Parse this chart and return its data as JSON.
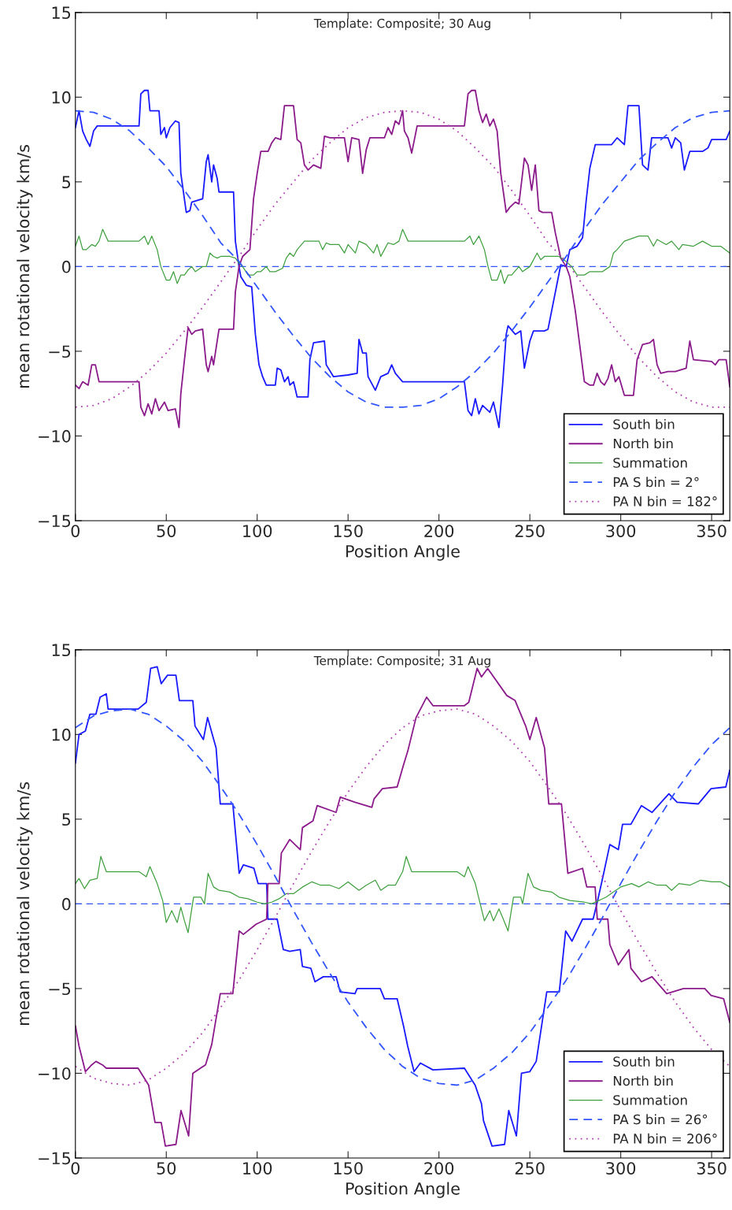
{
  "chart_data": [
    {
      "type": "line",
      "title": "Template: Composite; 30 Aug",
      "xlabel": "Position Angle",
      "ylabel": "mean rotational velocity km/s",
      "xlim": [
        0,
        360
      ],
      "ylim": [
        -15,
        15
      ],
      "xticks": [
        0,
        50,
        100,
        150,
        200,
        250,
        300,
        350
      ],
      "yticks": [
        -15,
        -10,
        -5,
        0,
        5,
        10,
        15
      ],
      "grid": false,
      "legend": "bottom right",
      "marker": "none",
      "ref_lines": [
        {
          "axis": "y",
          "value": 0,
          "color": "#3355ff",
          "line_style": "dashed"
        }
      ],
      "series": [
        {
          "name": "South bin",
          "color": "#1a1aff",
          "line_style": "solid",
          "x": [
            0,
            2,
            4,
            6,
            8,
            10,
            12,
            35,
            36,
            38,
            40,
            41,
            46,
            47,
            49,
            50,
            52,
            55,
            57,
            58,
            61,
            63,
            64,
            70,
            72,
            73,
            75,
            76,
            78,
            79,
            87,
            88,
            90,
            91,
            94,
            97,
            99,
            101,
            103,
            105,
            110,
            111,
            113,
            115,
            117,
            118,
            120,
            122,
            128,
            129,
            131,
            137,
            138,
            142,
            150,
            155,
            156,
            158,
            160,
            161,
            165,
            168,
            172,
            174,
            176,
            180,
            214,
            216,
            218,
            220,
            222,
            224,
            228,
            230,
            233,
            235,
            237,
            238,
            242,
            245,
            247,
            250,
            252,
            258,
            260,
            267,
            270,
            272,
            276,
            279,
            281,
            283,
            286,
            295,
            298,
            302,
            304,
            310,
            312,
            315,
            317,
            326,
            328,
            330,
            333,
            335,
            338,
            345,
            348,
            350,
            358,
            360
          ],
          "values": [
            8.2,
            9.2,
            8,
            7.5,
            7.1,
            8,
            8.3,
            8.3,
            10.2,
            10.4,
            10.4,
            9.2,
            9.2,
            7.8,
            8.2,
            7.6,
            8.2,
            8.6,
            8.5,
            5.5,
            3.2,
            3.3,
            3.8,
            4,
            6.2,
            6.6,
            5,
            6,
            5.2,
            4.4,
            4.4,
            1.5,
            0,
            -0.6,
            -1.1,
            -1.2,
            -4,
            -5.8,
            -6.5,
            -7,
            -7,
            -6,
            -6.1,
            -6.8,
            -6.5,
            -7,
            -6.8,
            -7.7,
            -7.7,
            -5.5,
            -4.5,
            -4.4,
            -5.8,
            -6.5,
            -6.4,
            -6.3,
            -4.3,
            -5.1,
            -5.1,
            -6.5,
            -7.3,
            -6.5,
            -6.3,
            -5.8,
            -6.3,
            -6.8,
            -6.8,
            -8.5,
            -8.8,
            -7.8,
            -8.7,
            -8.2,
            -8.6,
            -8,
            -9.5,
            -7,
            -4,
            -3.5,
            -4,
            -3.8,
            -6,
            -4.4,
            -3.8,
            -3.8,
            -3.7,
            0.1,
            0,
            1,
            1.2,
            1.7,
            3.9,
            5.8,
            7.2,
            7.2,
            7.6,
            7.2,
            9.5,
            9.5,
            6,
            5.7,
            7.6,
            7.6,
            7,
            7.6,
            7.3,
            5.7,
            6.8,
            6.8,
            7,
            7.5,
            7.5,
            8
          ]
        },
        {
          "name": "North bin",
          "color": "#8b1a8b",
          "line_style": "solid",
          "x": [
            0,
            2,
            4,
            7,
            9,
            11,
            13,
            35,
            36,
            38,
            40,
            42,
            44,
            46,
            49,
            51,
            55,
            57,
            58,
            60,
            62,
            64,
            66,
            70,
            72,
            73,
            75,
            76,
            79,
            87,
            88,
            90,
            92,
            96,
            98,
            100,
            102,
            106,
            108,
            110,
            113,
            115,
            120,
            122,
            124,
            126,
            128,
            131,
            135,
            137,
            140,
            148,
            150,
            152,
            156,
            158,
            160,
            162,
            170,
            172,
            174,
            176,
            178,
            180,
            181,
            183,
            185,
            188,
            195,
            214,
            216,
            218,
            220,
            222,
            224,
            226,
            228,
            230,
            232,
            234,
            237,
            239,
            242,
            244,
            247,
            249,
            251,
            253,
            255,
            257,
            262,
            264,
            267,
            270,
            272,
            275,
            278,
            280,
            283,
            285,
            287,
            289,
            291,
            293,
            295,
            297,
            299,
            302,
            307,
            309,
            312,
            316,
            318,
            320,
            322,
            326,
            330,
            336,
            338,
            340,
            350,
            352,
            354,
            358,
            360
          ],
          "values": [
            -7,
            -7.2,
            -6.8,
            -7,
            -5.8,
            -5.8,
            -6.8,
            -6.8,
            -8.3,
            -8.8,
            -8.1,
            -8.7,
            -7.8,
            -8.5,
            -8,
            -8.5,
            -8.4,
            -9.5,
            -7.5,
            -5.5,
            -3.6,
            -4,
            -3.8,
            -3.7,
            -5.8,
            -6.2,
            -5.3,
            -5.8,
            -3.7,
            -3.7,
            -1.5,
            0,
            0.6,
            1,
            4,
            5.5,
            6.8,
            6.8,
            7.3,
            7.6,
            7.5,
            9.5,
            9.5,
            7.5,
            7.3,
            6,
            5.7,
            6,
            5.8,
            7.7,
            7.6,
            7.6,
            6.2,
            7.6,
            7.5,
            5.5,
            6.9,
            7.6,
            7.6,
            8.2,
            7.8,
            8.6,
            8.4,
            9.2,
            8,
            7.6,
            6.7,
            8.3,
            8.3,
            8.3,
            10.2,
            10.4,
            10.4,
            9.2,
            8.5,
            9,
            8.3,
            8.7,
            8,
            5.5,
            3.2,
            3.5,
            3.8,
            3.7,
            6.4,
            6,
            4.5,
            6,
            3.3,
            3.2,
            3.2,
            2,
            0.5,
            0,
            -0.6,
            -2.6,
            -5.1,
            -6.8,
            -7,
            -7,
            -6.3,
            -6.8,
            -7,
            -6.6,
            -5.8,
            -6.8,
            -6.5,
            -7.6,
            -7.6,
            -5.5,
            -4.6,
            -4.5,
            -4.3,
            -5.8,
            -6.3,
            -6.2,
            -6.2,
            -6,
            -4.4,
            -5.5,
            -5.6,
            -5.8,
            -5.5,
            -5.5,
            -7.1
          ]
        },
        {
          "name": "Summation",
          "color": "#40a040",
          "line_style": "solid",
          "x": [
            0,
            2,
            4,
            6,
            9,
            11,
            13,
            15,
            18,
            35,
            38,
            40,
            42,
            45,
            47,
            50,
            52,
            54,
            56,
            58,
            60,
            62,
            64,
            66,
            70,
            72,
            74,
            76,
            78,
            80,
            85,
            88,
            90,
            92,
            95,
            98,
            100,
            102,
            105,
            107,
            110,
            114,
            116,
            118,
            120,
            122,
            126,
            130,
            134,
            136,
            138,
            140,
            145,
            148,
            150,
            154,
            156,
            160,
            164,
            166,
            168,
            170,
            172,
            175,
            178,
            180,
            183,
            195,
            205,
            214,
            217,
            219,
            222,
            225,
            227,
            229,
            232,
            234,
            236,
            238,
            240,
            244,
            246,
            250,
            254,
            256,
            258,
            262,
            266,
            270,
            273,
            276,
            280,
            283,
            286,
            290,
            294,
            296,
            298,
            302,
            310,
            315,
            318,
            320,
            325,
            328,
            332,
            334,
            340,
            345,
            350,
            355,
            360
          ],
          "values": [
            1.2,
            1.8,
            1,
            1,
            1.3,
            1.2,
            1.5,
            2.2,
            1.5,
            1.5,
            1.8,
            1.3,
            1.8,
            1.0,
            0,
            -0.8,
            -0.8,
            -0.3,
            -1,
            -0.5,
            -0.5,
            -0.2,
            0,
            -0.3,
            0,
            0,
            0.8,
            0.6,
            0.5,
            0.6,
            0.6,
            0.5,
            0.2,
            0,
            -0.5,
            -0.5,
            -0.3,
            -0.3,
            0,
            -0.3,
            -0.3,
            -0.1,
            0.5,
            0.8,
            0.6,
            1,
            1.5,
            1.5,
            1.5,
            1,
            1.4,
            1.3,
            1.3,
            0.8,
            1.3,
            0.8,
            1.5,
            1.3,
            0.8,
            1.3,
            0.6,
            1,
            1.4,
            1.3,
            1.5,
            2.2,
            1.5,
            1.5,
            1.5,
            1.5,
            1.8,
            1.3,
            1.8,
            1.0,
            0,
            -0.8,
            -0.8,
            -0.2,
            -1,
            -0.5,
            -0.5,
            0,
            -0.3,
            0,
            0.8,
            0.4,
            0.6,
            0.6,
            0.6,
            0.3,
            0,
            -0.5,
            -0.5,
            -0.3,
            -0.3,
            -0.3,
            0,
            0.8,
            1.0,
            1.5,
            1.8,
            1.8,
            1.2,
            1.6,
            1.3,
            1.5,
            1,
            1.3,
            1.2,
            1.5,
            1.2,
            1.2,
            0.8
          ]
        },
        {
          "name": "PA S bin = 2°",
          "color": "#3355ff",
          "line_style": "dashed",
          "x": [
            0,
            10,
            20,
            30,
            40,
            50,
            60,
            70,
            80,
            90,
            100,
            110,
            120,
            130,
            140,
            150,
            160,
            170,
            180,
            190,
            200,
            210,
            220,
            230,
            240,
            250,
            260,
            270,
            280,
            290,
            300,
            310,
            320,
            330,
            340,
            350,
            360
          ],
          "values": [
            9.2,
            9.1,
            8.7,
            8.0,
            7.0,
            5.9,
            4.5,
            3.0,
            1.4,
            0.3,
            -1.2,
            -2.7,
            -4.1,
            -5.4,
            -6.5,
            -7.4,
            -8.0,
            -8.3,
            -8.3,
            -8.2,
            -7.8,
            -7.1,
            -6.2,
            -5.1,
            -3.8,
            -2.4,
            -0.9,
            0.6,
            2.2,
            3.7,
            5.0,
            6.3,
            7.3,
            8.2,
            8.8,
            9.1,
            9.2
          ]
        },
        {
          "name": "PA N bin = 182°",
          "color": "#b040b0",
          "line_style": "dotted",
          "x": [
            0,
            10,
            20,
            30,
            40,
            50,
            60,
            70,
            80,
            90,
            100,
            110,
            120,
            130,
            140,
            150,
            160,
            170,
            180,
            190,
            200,
            210,
            220,
            230,
            240,
            250,
            260,
            270,
            280,
            290,
            300,
            310,
            320,
            330,
            340,
            350,
            360
          ],
          "values": [
            -8.3,
            -8.2,
            -7.8,
            -7.1,
            -6.2,
            -5.1,
            -3.8,
            -2.4,
            -0.9,
            0.6,
            2.2,
            3.7,
            5.0,
            6.3,
            7.3,
            8.2,
            8.8,
            9.1,
            9.2,
            9.1,
            8.7,
            8.0,
            7.0,
            5.9,
            4.5,
            3.0,
            1.4,
            0.3,
            -1.2,
            -2.7,
            -4.1,
            -5.4,
            -6.5,
            -7.4,
            -8.0,
            -8.3,
            -8.3
          ]
        }
      ]
    },
    {
      "type": "line",
      "title": "Template: Composite; 31 Aug",
      "xlabel": "Position Angle",
      "ylabel": "mean rotational velocity km/s",
      "xlim": [
        0,
        360
      ],
      "ylim": [
        -15,
        15
      ],
      "xticks": [
        0,
        50,
        100,
        150,
        200,
        250,
        300,
        350
      ],
      "yticks": [
        -15,
        -10,
        -5,
        0,
        5,
        10,
        15
      ],
      "grid": false,
      "legend": "bottom right",
      "marker": "none",
      "ref_lines": [
        {
          "axis": "y",
          "value": 0,
          "color": "#3355ff",
          "line_style": "dashed"
        }
      ],
      "series": [
        {
          "name": "South bin",
          "color": "#1a1aff",
          "line_style": "solid",
          "x": [
            0,
            2,
            5.5,
            8,
            11.3,
            13.6,
            17,
            18,
            34.5,
            39,
            41.4,
            45,
            47.2,
            50.7,
            55.3,
            57.2,
            64.6,
            65.8,
            70.4,
            72.7,
            77.4,
            79.7,
            86.6,
            90.1,
            92.4,
            98.2,
            100.5,
            105.2,
            105.9,
            111,
            114.4,
            117.9,
            123.7,
            124.9,
            129.5,
            131.8,
            136.4,
            143.4,
            145.7,
            153.8,
            155,
            167.7,
            170,
            177,
            180.5,
            182.8,
            186.3,
            189.8,
            196.7,
            214,
            219.9,
            223.4,
            224.5,
            229.2,
            236.1,
            238.4,
            242.6,
            245.4,
            250,
            253.5,
            259.3,
            266.2,
            269.7,
            273.2,
            279,
            284.8,
            287.1,
            290.6,
            294,
            298.7,
            301,
            305.6,
            311.4,
            317.2,
            326.5,
            331,
            342.7,
            345,
            349.7,
            357.8,
            360
          ],
          "values": [
            8.3,
            10.0,
            10.2,
            11.2,
            11.2,
            12.2,
            12.4,
            11.5,
            11.5,
            11.9,
            13.9,
            14.0,
            13.0,
            13.5,
            13.5,
            12.0,
            12.0,
            10.5,
            9.7,
            11.0,
            9.2,
            5.9,
            5.9,
            1.8,
            2.3,
            2.1,
            1.2,
            1.2,
            -0.9,
            -0.9,
            -2.7,
            -2.8,
            -2.7,
            -3.7,
            -3.8,
            -4.6,
            -4.3,
            -4.3,
            -5.2,
            -5.3,
            -5.0,
            -5.0,
            -5.6,
            -5.6,
            -7.2,
            -8.4,
            -9.9,
            -9.4,
            -9.8,
            -9.7,
            -10.7,
            -11.8,
            -12.8,
            -14.3,
            -14.2,
            -12.2,
            -13.7,
            -10.0,
            -9.9,
            -9.3,
            -5.2,
            -5.2,
            -1.6,
            -2.2,
            -0.9,
            -0.9,
            0.1,
            1.8,
            3.5,
            3.2,
            4.7,
            4.7,
            5.8,
            5.4,
            6.5,
            6.0,
            5.9,
            6.2,
            6.8,
            6.9,
            7.9
          ]
        },
        {
          "name": "North bin",
          "color": "#8b1a8b",
          "line_style": "solid",
          "x": [
            0,
            2,
            5.5,
            9,
            11.3,
            14.8,
            17,
            34.5,
            40.3,
            43.8,
            47.2,
            49.5,
            55.3,
            58.1,
            62.3,
            64.6,
            71.6,
            75,
            79.7,
            86.6,
            90.1,
            92.4,
            99.4,
            105.2,
            105.9,
            112.1,
            113.3,
            117.9,
            123.7,
            124.9,
            130.7,
            133,
            143.4,
            145.7,
            153.8,
            163.1,
            164.3,
            168.9,
            177,
            180.5,
            182.8,
            187.4,
            193.2,
            196.7,
            214,
            216.4,
            221,
            223.4,
            226.8,
            237.3,
            241.9,
            247.7,
            250,
            253.5,
            258.1,
            260.4,
            267.4,
            270.9,
            279,
            281.3,
            285.9,
            287.1,
            292.9,
            294,
            298.7,
            304.5,
            305.6,
            311.4,
            317.2,
            325.3,
            334.6,
            346.2,
            349.7,
            356.6,
            360
          ],
          "values": [
            -7.2,
            -8.4,
            -9.9,
            -9.5,
            -9.3,
            -9.5,
            -9.7,
            -9.7,
            -10.7,
            -12.9,
            -12.9,
            -14.3,
            -14.2,
            -12.2,
            -13.7,
            -10.0,
            -9.5,
            -8.3,
            -5.3,
            -5.3,
            -1.6,
            -1.8,
            -1.2,
            -0.9,
            1.2,
            1.2,
            3.0,
            3.8,
            3.2,
            4.5,
            4.9,
            5.8,
            5.4,
            6.3,
            6.0,
            5.7,
            6.2,
            6.8,
            6.9,
            8.2,
            9.0,
            11.0,
            12.2,
            11.7,
            11.7,
            11.9,
            13.9,
            13.4,
            13.9,
            12.3,
            12.0,
            10.5,
            9.7,
            11.0,
            9.2,
            5.9,
            5.9,
            1.8,
            2.1,
            1.0,
            1.0,
            -0.9,
            -0.9,
            -2.4,
            -3.6,
            -2.7,
            -3.8,
            -4.6,
            -4.3,
            -5.3,
            -5.0,
            -5.0,
            -5.4,
            -5.6,
            -7.0
          ]
        },
        {
          "name": "Summation",
          "color": "#40a040",
          "line_style": "solid",
          "x": [
            0,
            2,
            5,
            8,
            12,
            14,
            17,
            35,
            39,
            41,
            45,
            48,
            50,
            53,
            56,
            58,
            60,
            62,
            65,
            69,
            71,
            73,
            76,
            79,
            85,
            90,
            95,
            100,
            104,
            108,
            112,
            116,
            120,
            125,
            130,
            135,
            140,
            145,
            150,
            156,
            160,
            165,
            168,
            172,
            176,
            180,
            182,
            185,
            210,
            214,
            216,
            220,
            222,
            225,
            228,
            230,
            233,
            235,
            238,
            241,
            245,
            246,
            249,
            252,
            256,
            262,
            266,
            272,
            280,
            284,
            288,
            292,
            296,
            300,
            306,
            310,
            315,
            320,
            325,
            328,
            332,
            338,
            344,
            350,
            355,
            360
          ],
          "values": [
            1.2,
            1.5,
            0.9,
            1.4,
            1.5,
            2.8,
            1.9,
            1.9,
            1.6,
            2.2,
            1.2,
            0.2,
            -1.1,
            -0.4,
            -1.1,
            -0.2,
            -1,
            -1.7,
            0.4,
            0.4,
            0,
            1.8,
            1.0,
            0.8,
            0.7,
            0.4,
            0.3,
            0.1,
            0,
            0.1,
            0.3,
            0.6,
            0.6,
            1.0,
            1.3,
            1.1,
            1.1,
            0.9,
            1.3,
            0.8,
            1.1,
            1.4,
            0.8,
            1.1,
            1.1,
            1.9,
            2.8,
            1.9,
            1.9,
            1.6,
            2.2,
            1.2,
            0.3,
            -1.0,
            -0.4,
            -1.0,
            -0.3,
            -0.8,
            -1.6,
            0.4,
            0.4,
            0,
            1.8,
            1.0,
            0.8,
            0.7,
            0.4,
            0.2,
            0.1,
            0,
            0.2,
            0.4,
            0.7,
            1.0,
            1.2,
            1.0,
            1.3,
            1.1,
            1.1,
            0.8,
            1.2,
            1.1,
            1.4,
            1.3,
            1.3,
            1.0
          ]
        },
        {
          "name": "PA S bin = 26°",
          "color": "#3355ff",
          "line_style": "dashed",
          "x": [
            0,
            10,
            20,
            30,
            40,
            50,
            60,
            70,
            80,
            90,
            100,
            110,
            120,
            130,
            140,
            150,
            160,
            170,
            180,
            190,
            200,
            210,
            220,
            230,
            240,
            250,
            260,
            270,
            280,
            290,
            300,
            310,
            320,
            330,
            340,
            350,
            360
          ],
          "values": [
            10.4,
            11.1,
            11.4,
            11.5,
            11.2,
            10.5,
            9.6,
            8.4,
            6.9,
            5.3,
            3.5,
            1.6,
            -0.4,
            -2.3,
            -4.1,
            -5.8,
            -7.3,
            -8.6,
            -9.6,
            -10.3,
            -10.6,
            -10.7,
            -10.4,
            -9.7,
            -8.8,
            -7.6,
            -6.1,
            -4.5,
            -2.7,
            -0.8,
            1.2,
            3.1,
            4.9,
            6.6,
            8.1,
            9.4,
            10.4
          ]
        },
        {
          "name": "PA N bin = 206°",
          "color": "#b040b0",
          "line_style": "dotted",
          "x": [
            0,
            10,
            20,
            30,
            40,
            50,
            60,
            70,
            80,
            90,
            100,
            110,
            120,
            130,
            140,
            150,
            160,
            170,
            180,
            190,
            200,
            210,
            220,
            230,
            240,
            250,
            260,
            270,
            280,
            290,
            300,
            310,
            320,
            330,
            340,
            350,
            360
          ],
          "values": [
            -9.6,
            -10.3,
            -10.6,
            -10.7,
            -10.4,
            -9.7,
            -8.8,
            -7.6,
            -6.1,
            -4.5,
            -2.7,
            -0.8,
            1.2,
            3.1,
            4.9,
            6.6,
            8.1,
            9.4,
            10.4,
            11.1,
            11.4,
            11.5,
            11.2,
            10.5,
            9.6,
            8.4,
            6.9,
            5.3,
            3.5,
            1.6,
            -0.4,
            -2.3,
            -4.1,
            -5.8,
            -7.3,
            -8.6,
            -9.6
          ]
        }
      ]
    }
  ]
}
